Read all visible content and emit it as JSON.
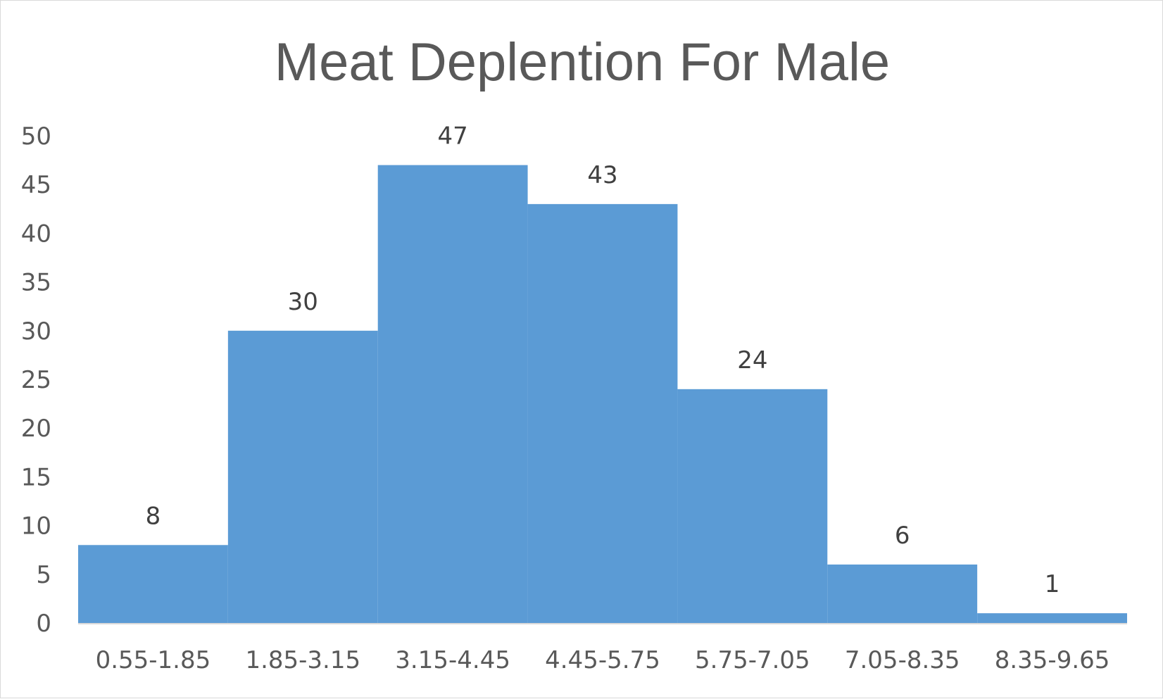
{
  "chart_data": {
    "type": "bar",
    "title": "Meat Deplention For Male",
    "categories": [
      "0.55-1.85",
      "1.85-3.15",
      "3.15-4.45",
      "4.45-5.75",
      "5.75-7.05",
      "7.05-8.35",
      "8.35-9.65"
    ],
    "values": [
      8,
      30,
      47,
      43,
      24,
      6,
      1
    ],
    "xlabel": "",
    "ylabel": "",
    "ylim": [
      0,
      50
    ],
    "yticks": [
      0,
      5,
      10,
      15,
      20,
      25,
      30,
      35,
      40,
      45,
      50
    ],
    "grid": false,
    "legend": "none",
    "bar_gap": 0,
    "colors": {
      "bar": "#5b9bd5",
      "axis": "#d9d9d9",
      "tick_text": "#595959",
      "label_text": "#404040"
    }
  }
}
